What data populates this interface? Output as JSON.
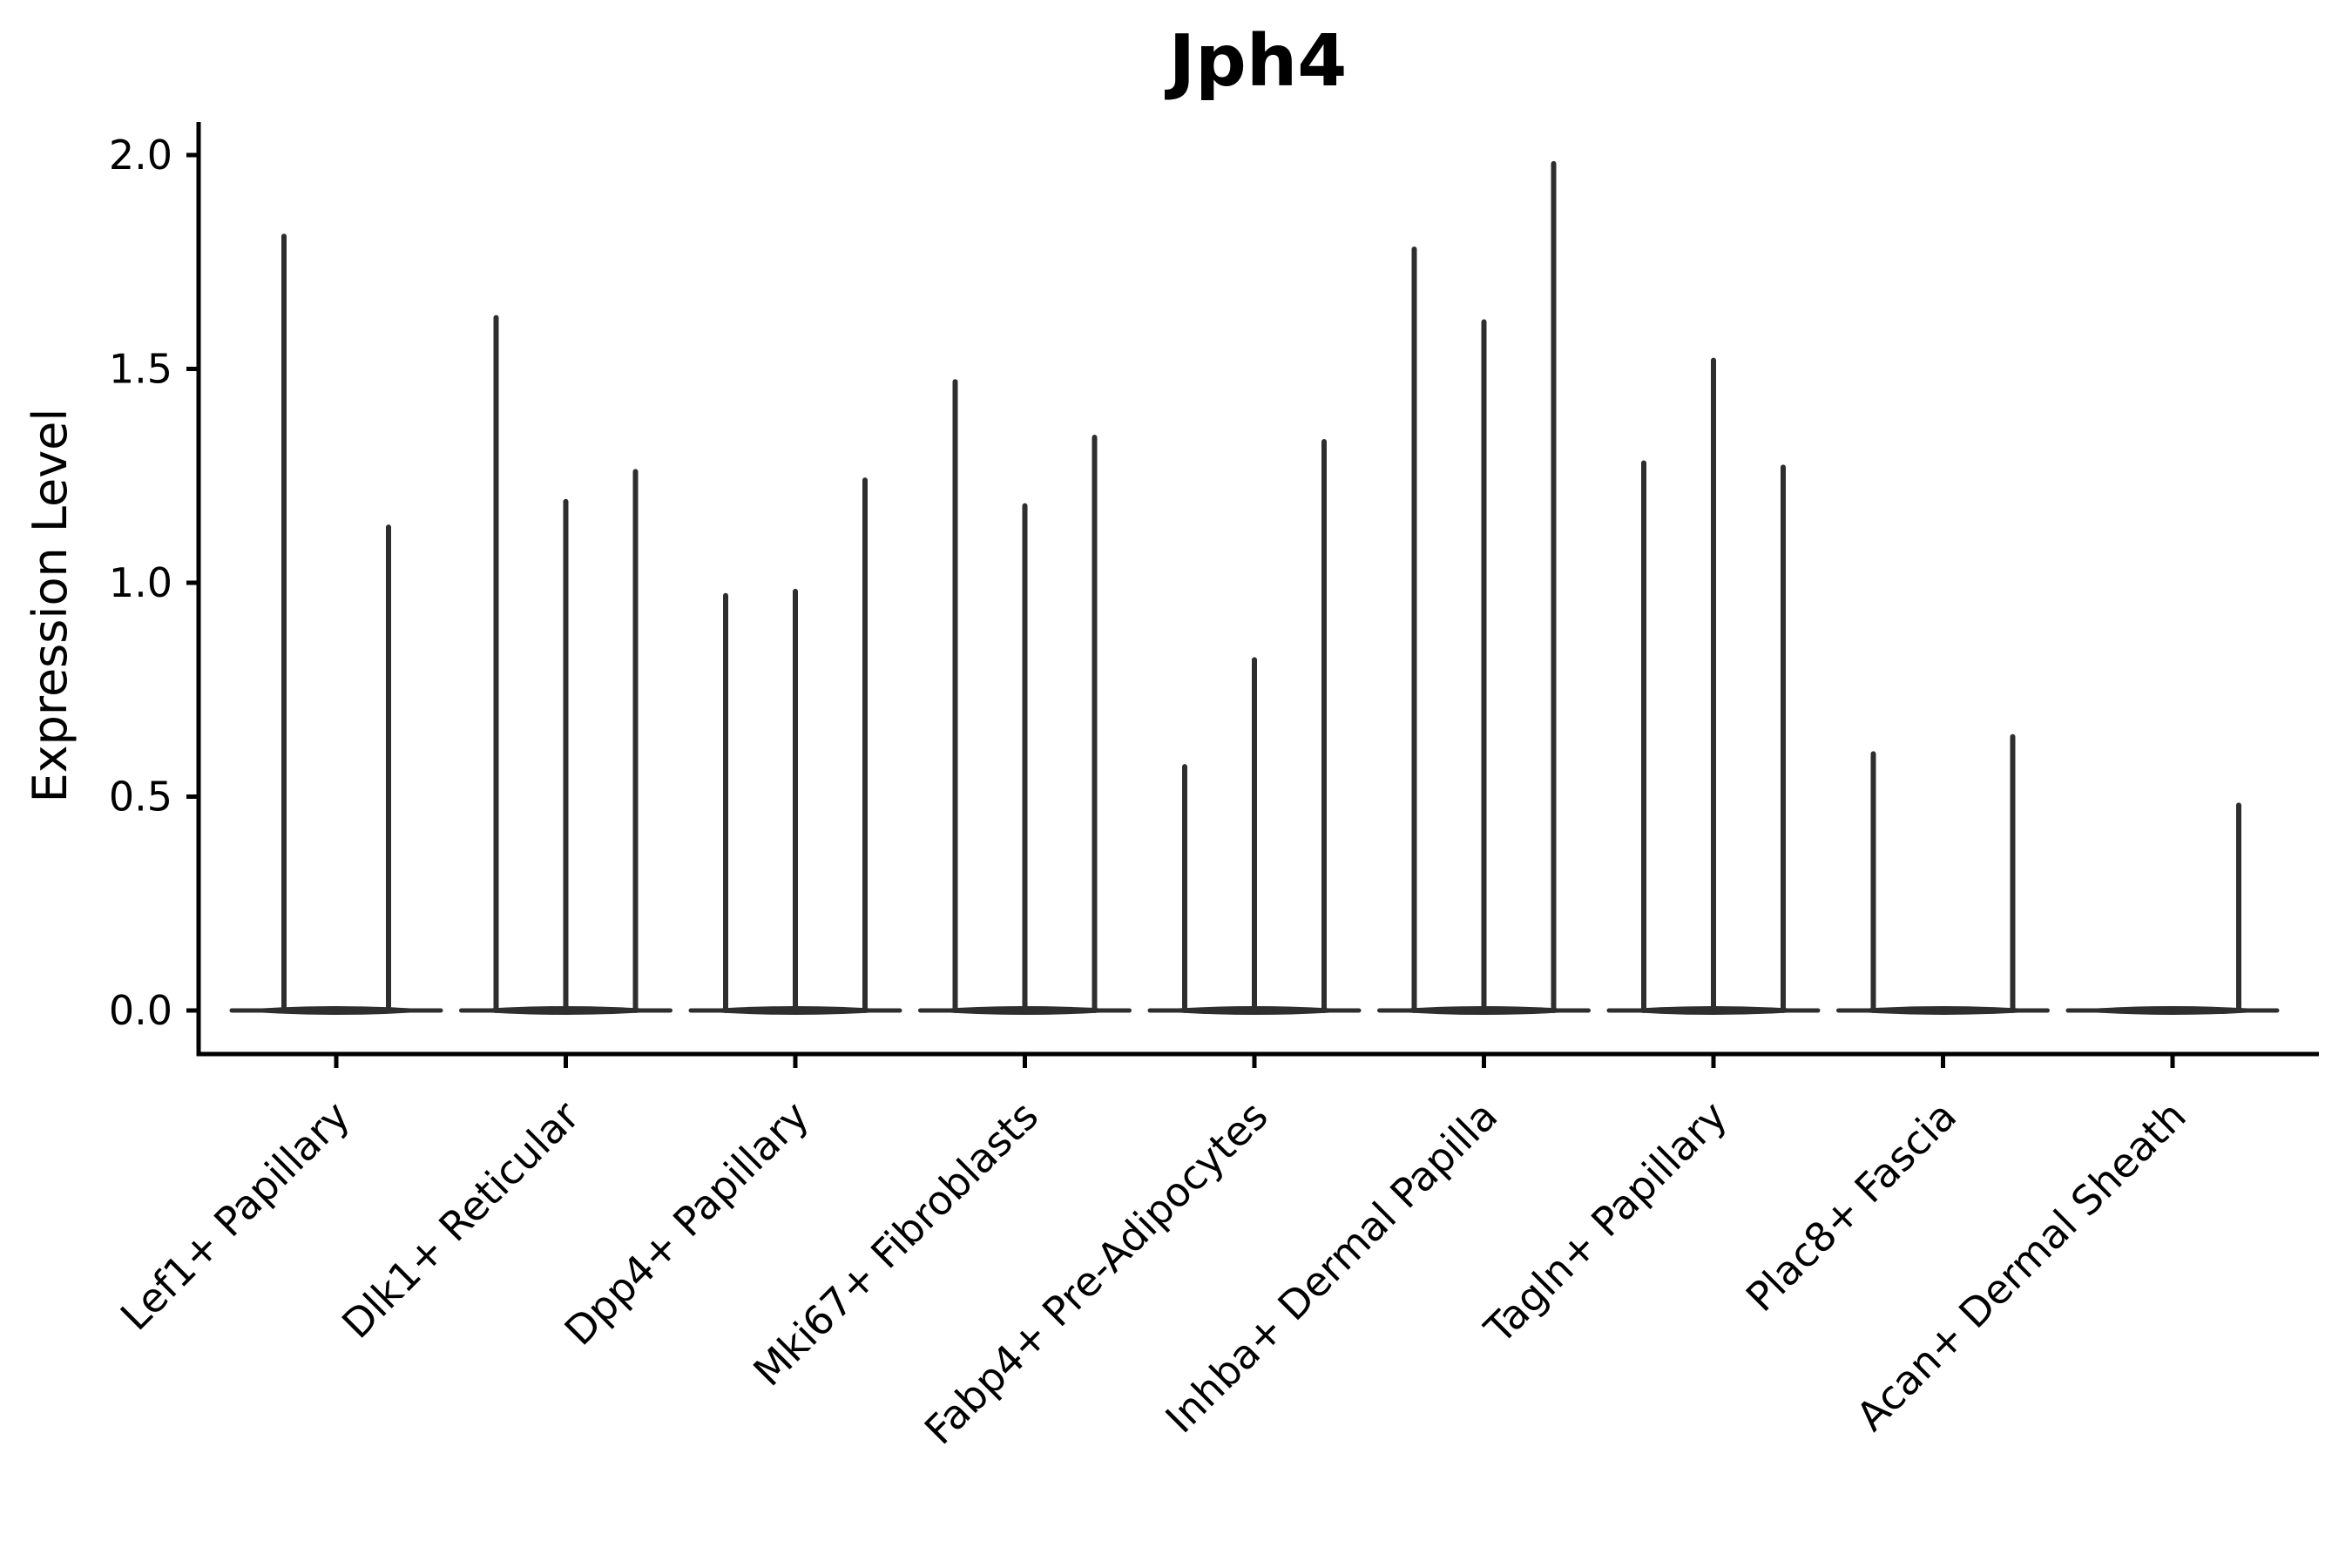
{
  "chart_data": {
    "type": "violin",
    "title": "Jph4",
    "xlabel": "",
    "ylabel": "Expression Level",
    "ylim": [
      0,
      2.05
    ],
    "yticks": [
      0.0,
      0.5,
      1.0,
      1.5,
      2.0
    ],
    "ytick_labels": [
      "0.0",
      "0.5",
      "1.0",
      "1.5",
      "2.0"
    ],
    "grid": false,
    "legend": "none",
    "style_note": "sparse single-cell violins: wide flat density blob at 0 per group with thin vertical spikes up to each sub-violin max expressed value; black left/bottom spines only; x labels rotated 45deg",
    "categories": [
      "Lef1+ Papillary",
      "Dlk1+ Reticular",
      "Dpp4+ Papillary",
      "Mki67+ Fibroblasts",
      "Fabp4+ Pre-Adipocytes",
      "Inhba+ Dermal Papilla",
      "Tagln+ Papillary",
      "Plac8+ Fascia",
      "Acan+ Dermal Sheath"
    ],
    "groups": [
      {
        "category": "Lef1+ Papillary",
        "violins": [
          {
            "offset": -60,
            "peak": 1.81
          },
          {
            "offset": 60,
            "peak": 1.13
          }
        ]
      },
      {
        "category": "Dlk1+ Reticular",
        "violins": [
          {
            "offset": -80,
            "peak": 1.62
          },
          {
            "offset": 0,
            "peak": 1.19
          },
          {
            "offset": 80,
            "peak": 1.26
          }
        ]
      },
      {
        "category": "Dpp4+ Papillary",
        "violins": [
          {
            "offset": -80,
            "peak": 0.97
          },
          {
            "offset": 0,
            "peak": 0.98
          },
          {
            "offset": 80,
            "peak": 1.24
          }
        ]
      },
      {
        "category": "Mki67+ Fibroblasts",
        "violins": [
          {
            "offset": -80,
            "peak": 1.47
          },
          {
            "offset": 0,
            "peak": 1.18
          },
          {
            "offset": 80,
            "peak": 1.34
          }
        ]
      },
      {
        "category": "Fabp4+ Pre-Adipocytes",
        "violins": [
          {
            "offset": -80,
            "peak": 0.57
          },
          {
            "offset": 0,
            "peak": 0.82
          },
          {
            "offset": 80,
            "peak": 1.33
          }
        ]
      },
      {
        "category": "Inhba+ Dermal Papilla",
        "violins": [
          {
            "offset": -80,
            "peak": 1.78
          },
          {
            "offset": 0,
            "peak": 1.61
          },
          {
            "offset": 80,
            "peak": 1.98
          }
        ]
      },
      {
        "category": "Tagln+ Papillary",
        "violins": [
          {
            "offset": -80,
            "peak": 1.28
          },
          {
            "offset": 0,
            "peak": 1.52
          },
          {
            "offset": 80,
            "peak": 1.27
          }
        ]
      },
      {
        "category": "Plac8+ Fascia",
        "violins": [
          {
            "offset": -80,
            "peak": 0.6
          },
          {
            "offset": 80,
            "peak": 0.64
          }
        ]
      },
      {
        "category": "Acan+ Dermal Sheath",
        "violins": [
          {
            "offset": 76,
            "peak": 0.48
          }
        ]
      }
    ],
    "colors": {
      "violin": "#2e2e2e",
      "axis": "#000000",
      "text": "#000000",
      "background": "#ffffff"
    }
  }
}
